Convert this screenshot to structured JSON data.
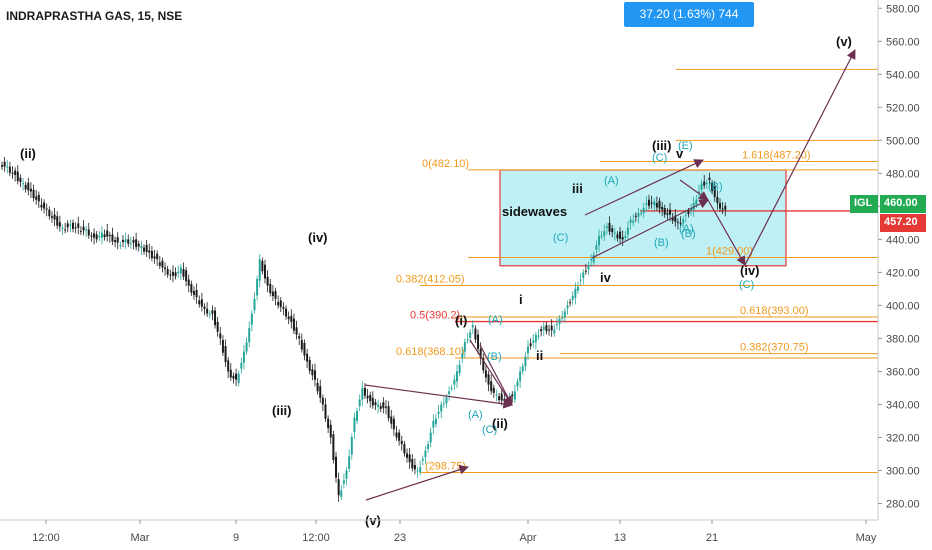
{
  "header": {
    "symbol_title": "INDRAPRASTHA GAS, 15, NSE",
    "change_badge": "37.20 (1.63%) 744"
  },
  "colors": {
    "up": "#26a69a",
    "down": "#1b1b1b",
    "fib": "#f29a1d",
    "red_line": "#e53935",
    "wave_label": "#111111",
    "sub_label": "#1fa8b8",
    "arrow": "#6b2f4f",
    "box_fill": "#bff0f5",
    "box_border": "#e53935",
    "badge": "#2196f3",
    "igl_tag": "#22ab52",
    "price_tag": "#e53935"
  },
  "chart_data": {
    "type": "candlestick",
    "instrument": "INDRAPRASTHA GAS",
    "interval": "15",
    "exchange": "NSE",
    "x_ticks": [
      "12:00",
      "Mar",
      "9",
      "12:00",
      "23",
      "Apr",
      "13",
      "21",
      "May"
    ],
    "y_range": [
      270,
      585
    ],
    "y_ticks": [
      "280.00",
      "300.00",
      "320.00",
      "340.00",
      "360.00",
      "380.00",
      "400.00",
      "420.00",
      "440.00",
      "460.00",
      "480.00",
      "500.00",
      "520.00",
      "540.00",
      "560.00",
      "580.00"
    ],
    "last_price_tags": [
      {
        "name": "IGL",
        "value": "460.00"
      },
      {
        "name": "",
        "value": "457.20"
      }
    ],
    "price_path": [
      484,
      479,
      474,
      469,
      463,
      458,
      452,
      447,
      449,
      447,
      446,
      441,
      444,
      442,
      438,
      440,
      438,
      436,
      432,
      428,
      422,
      418,
      423,
      412,
      405,
      398,
      395,
      380,
      360,
      355,
      372,
      395,
      428,
      412,
      404,
      398,
      390,
      380,
      366,
      355,
      340,
      320,
      285,
      300,
      332,
      350,
      342,
      340,
      338,
      325,
      316,
      305,
      300,
      312,
      330,
      340,
      348,
      360,
      378,
      388,
      368,
      352,
      346,
      342,
      345,
      360,
      375,
      382,
      387,
      385,
      392,
      400,
      410,
      420,
      428,
      442,
      448,
      444,
      440,
      452,
      456,
      462,
      463,
      458,
      455,
      450,
      455,
      462,
      474,
      476,
      462,
      458
    ],
    "horizontal_lines": [
      {
        "price": 543,
        "label": "",
        "color": "fib"
      },
      {
        "price": 500,
        "label": "",
        "color": "fib"
      },
      {
        "price": 487.2,
        "label": "1.618(487.20)",
        "color": "fib"
      },
      {
        "price": 482.1,
        "label": "0(482.10)",
        "color": "fib"
      },
      {
        "price": 429,
        "label": "1(429.00)",
        "color": "fib"
      },
      {
        "price": 412.05,
        "label": "0.382(412.05)",
        "color": "fib"
      },
      {
        "price": 393,
        "label": "0.618(393.00)",
        "color": "fib"
      },
      {
        "price": 390.2,
        "label": "0.5(390.2)",
        "color": "red_line"
      },
      {
        "price": 368.1,
        "label": "0.618(368.10)",
        "color": "fib"
      },
      {
        "price": 370.75,
        "label": "0.382(370.75)",
        "color": "fib"
      },
      {
        "price": 298.75,
        "label": "(298.75)",
        "color": "fib"
      }
    ],
    "resistance_line": 457.2,
    "box": {
      "price_top": 482,
      "price_bottom": 424,
      "label": "sidewaves"
    },
    "wave_labels": [
      {
        "text": "(ii)",
        "kind": "major"
      },
      {
        "text": "(iv)",
        "kind": "major"
      },
      {
        "text": "(iii)",
        "kind": "major"
      },
      {
        "text": "(v)",
        "kind": "major"
      },
      {
        "text": "(i)",
        "kind": "major"
      },
      {
        "text": "(ii)",
        "kind": "major"
      },
      {
        "text": "i",
        "kind": "major"
      },
      {
        "text": "ii",
        "kind": "major"
      },
      {
        "text": "iii",
        "kind": "major"
      },
      {
        "text": "iv",
        "kind": "major"
      },
      {
        "text": "(iii)",
        "kind": "major"
      },
      {
        "text": "v",
        "kind": "major"
      },
      {
        "text": "(iv)",
        "kind": "major"
      },
      {
        "text": "(v)",
        "kind": "major"
      },
      {
        "text": "(A)",
        "kind": "sub"
      },
      {
        "text": "(B)",
        "kind": "sub"
      },
      {
        "text": "(C)",
        "kind": "sub"
      },
      {
        "text": "(A)",
        "kind": "sub"
      },
      {
        "text": "(B)",
        "kind": "sub"
      },
      {
        "text": "(C)",
        "kind": "sub"
      },
      {
        "text": "(A)",
        "kind": "sub"
      },
      {
        "text": "(B)",
        "kind": "sub"
      },
      {
        "text": "(C)",
        "kind": "sub"
      },
      {
        "text": "(E)",
        "kind": "sub"
      },
      {
        "text": "(B)",
        "kind": "sub"
      },
      {
        "text": "(C)",
        "kind": "sub"
      },
      {
        "text": "(A)",
        "kind": "sub"
      }
    ]
  }
}
